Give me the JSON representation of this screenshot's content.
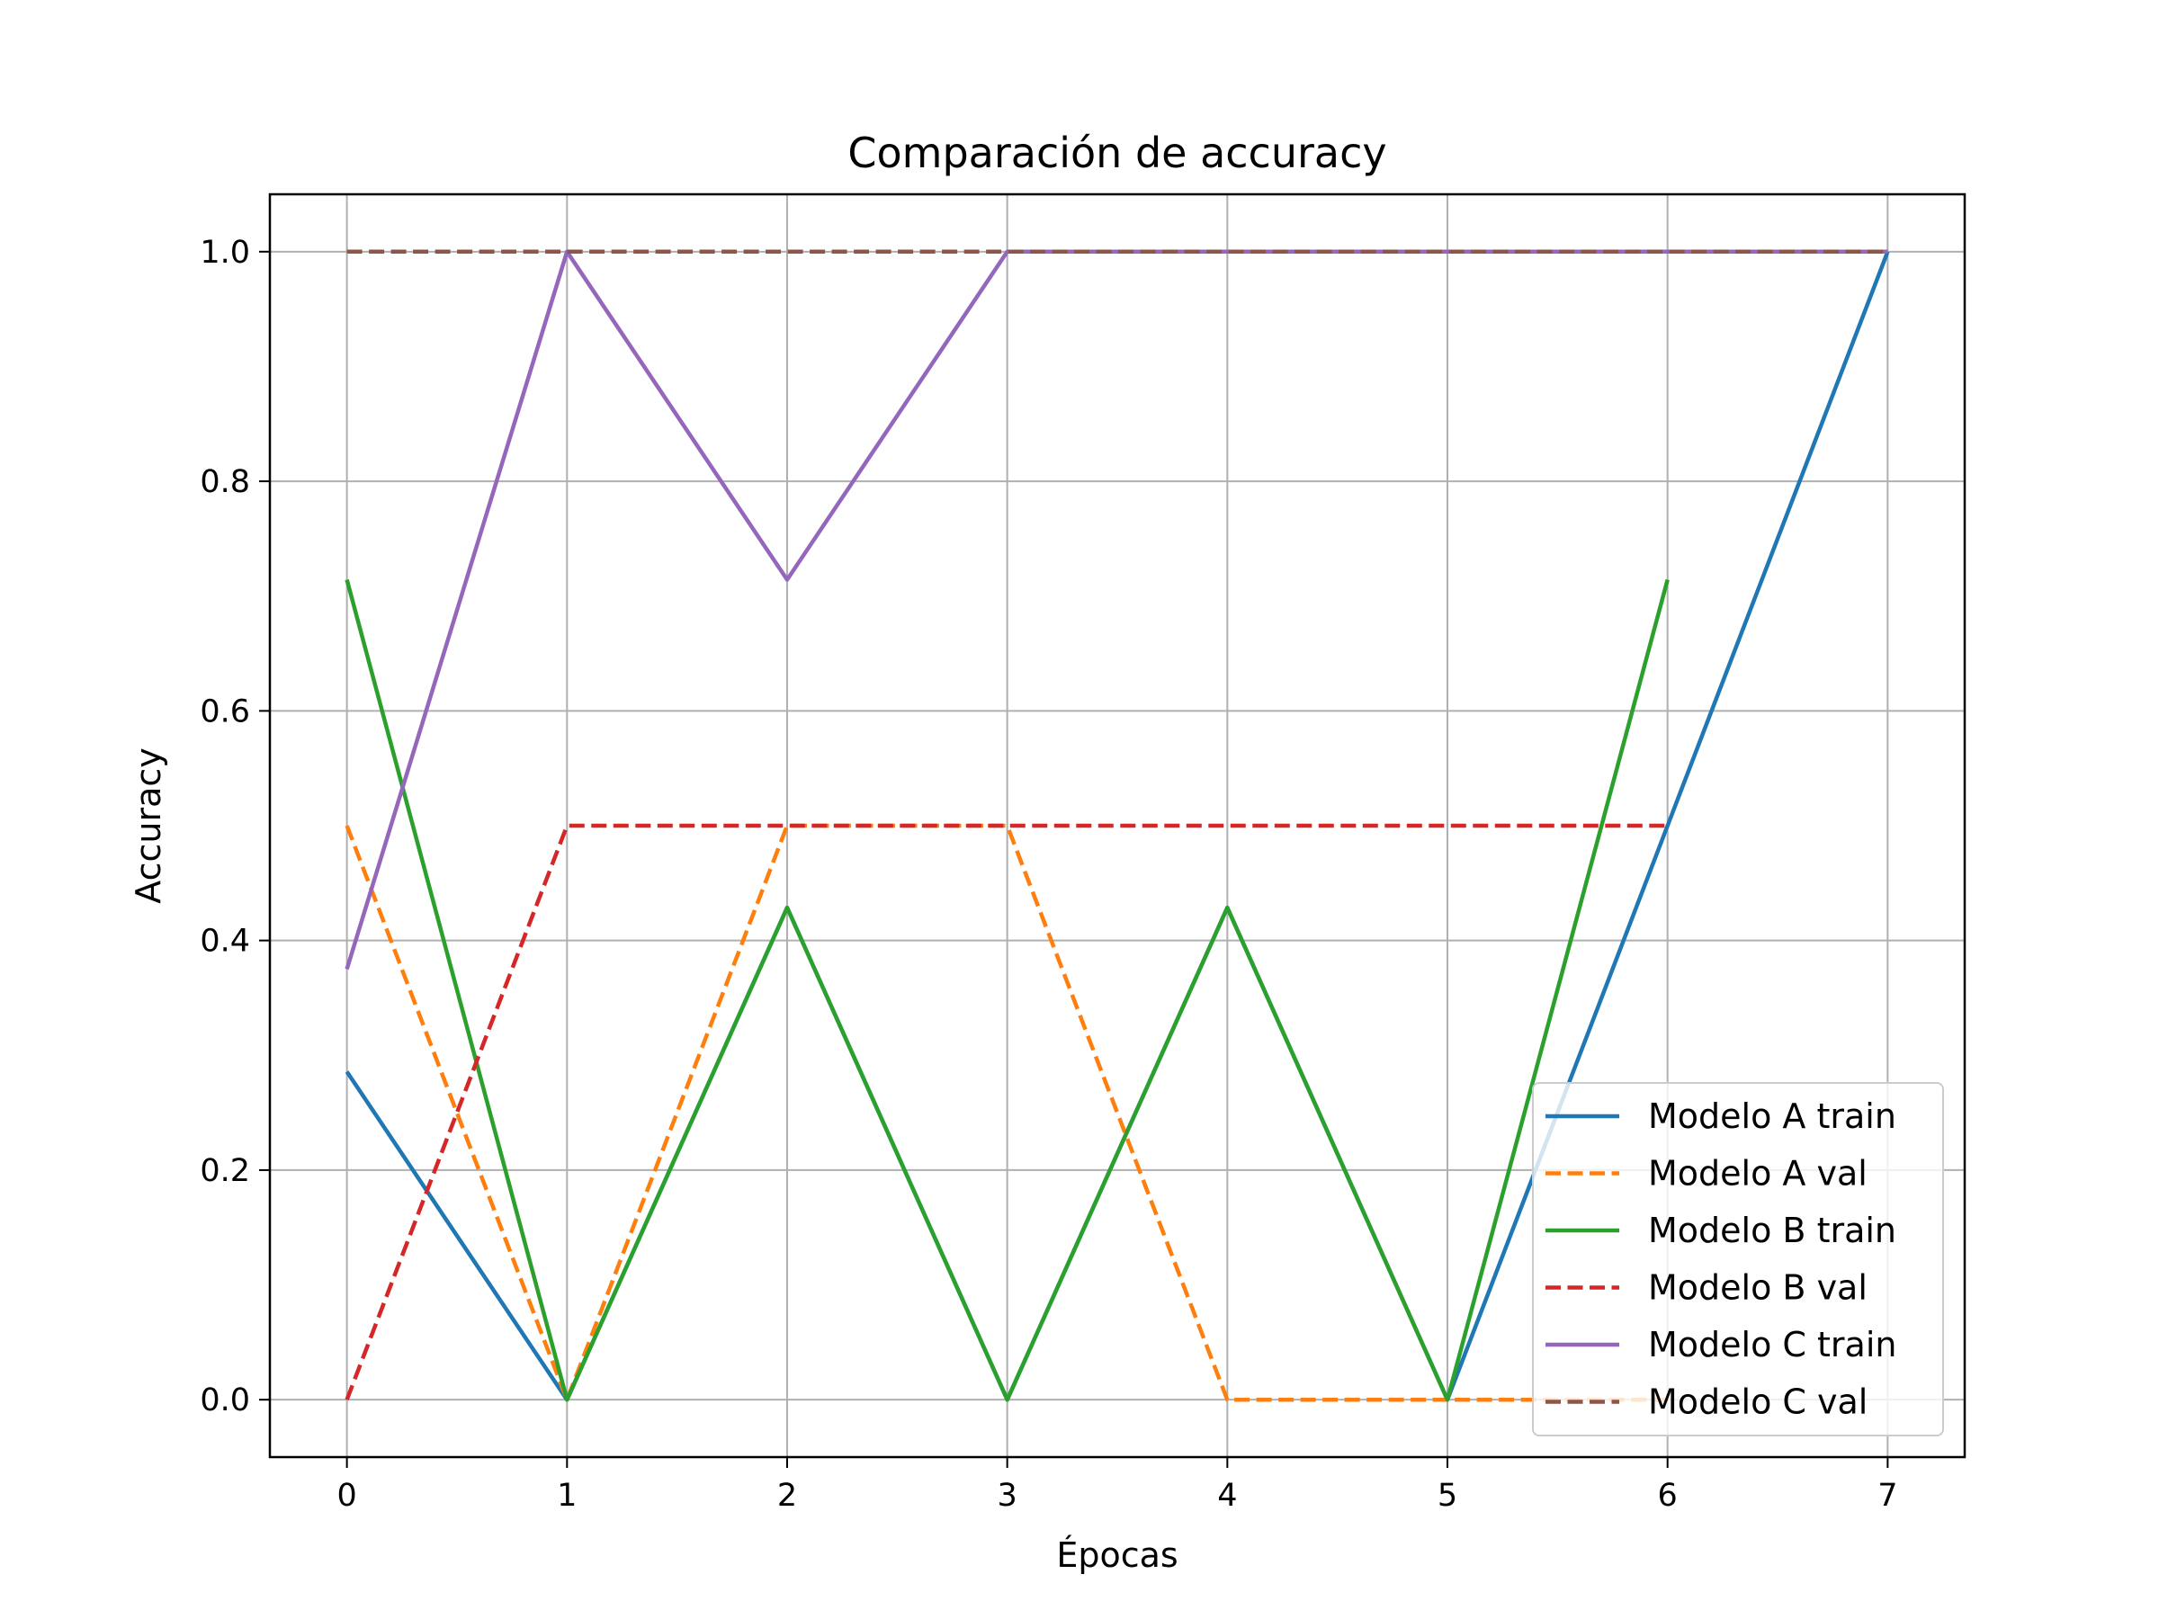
{
  "chart_data": {
    "type": "line",
    "title": "Comparación de accuracy",
    "xlabel": "Épocas",
    "ylabel": "Accuracy",
    "xlim": [
      -0.35,
      7.35
    ],
    "ylim": [
      -0.05,
      1.05
    ],
    "xticks": [
      0,
      1,
      2,
      3,
      4,
      5,
      6,
      7
    ],
    "xtick_labels": [
      "0",
      "1",
      "2",
      "3",
      "4",
      "5",
      "6",
      "7"
    ],
    "yticks": [
      0.0,
      0.2,
      0.4,
      0.6,
      0.8,
      1.0
    ],
    "ytick_labels": [
      "0.0",
      "0.2",
      "0.4",
      "0.6",
      "0.8",
      "1.0"
    ],
    "grid": true,
    "legend_position": "lower-right",
    "series": [
      {
        "name": "Modelo A train",
        "color": "#1f77b4",
        "dash": "solid",
        "x": [
          0,
          1,
          2,
          3,
          4,
          5,
          6,
          7
        ],
        "values": [
          0.2857,
          0.0,
          0.4286,
          0.0,
          0.4286,
          0.0,
          0.5,
          1.0
        ]
      },
      {
        "name": "Modelo A val",
        "color": "#ff7f0e",
        "dash": "dashed",
        "x": [
          0,
          1,
          2,
          3,
          4,
          5,
          6
        ],
        "values": [
          0.5,
          0.0,
          0.5,
          0.5,
          0.0,
          0.0,
          0.0
        ]
      },
      {
        "name": "Modelo B train",
        "color": "#2ca02c",
        "dash": "solid",
        "x": [
          0,
          1,
          2,
          3,
          4,
          5,
          6
        ],
        "values": [
          0.7143,
          0.0,
          0.4286,
          0.0,
          0.4286,
          0.0,
          0.7143
        ]
      },
      {
        "name": "Modelo B val",
        "color": "#d62728",
        "dash": "dashed",
        "x": [
          0,
          1,
          2,
          3,
          4,
          5,
          6
        ],
        "values": [
          0.0,
          0.5,
          0.5,
          0.5,
          0.5,
          0.5,
          0.5
        ]
      },
      {
        "name": "Modelo C train",
        "color": "#9467bd",
        "dash": "solid",
        "x": [
          0,
          1,
          2,
          3,
          4,
          5,
          6,
          7
        ],
        "values": [
          0.375,
          1.0,
          0.7143,
          1.0,
          1.0,
          1.0,
          1.0,
          1.0
        ]
      },
      {
        "name": "Modelo C val",
        "color": "#8c564b",
        "dash": "dashed",
        "x": [
          0,
          1,
          2,
          3,
          4,
          5,
          6,
          7
        ],
        "values": [
          1.0,
          1.0,
          1.0,
          1.0,
          1.0,
          1.0,
          1.0,
          1.0
        ]
      }
    ]
  }
}
